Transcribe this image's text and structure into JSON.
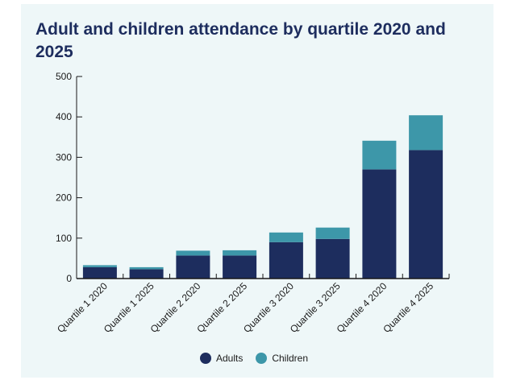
{
  "chart_data": {
    "type": "bar",
    "stacked": true,
    "title": "Adult and children attendance by quartile 2020 and 2025",
    "xlabel": "",
    "ylabel": "",
    "ylim": [
      0,
      500
    ],
    "yticks": [
      0,
      100,
      200,
      300,
      400,
      500
    ],
    "categories": [
      "Quartile 1 2020",
      "Quartile 1 2025",
      "Quartile 2 2020",
      "Quartile 2 2025",
      "Quartile 3 2020",
      "Quartile 3 2025",
      "Quartile 4 2020",
      "Quartile 4 2025"
    ],
    "series": [
      {
        "name": "Adults",
        "color": "#1d2d5e",
        "values": [
          28,
          23,
          57,
          57,
          90,
          98,
          270,
          318
        ]
      },
      {
        "name": "Children",
        "color": "#3d97a9",
        "values": [
          5,
          5,
          12,
          13,
          24,
          28,
          71,
          86
        ]
      }
    ],
    "legend": "bottom-center",
    "grid": false
  },
  "colors": {
    "panel_background": "#eef7f8",
    "title_color": "#1d2d5e",
    "axis_color": "#1a1a1a"
  }
}
